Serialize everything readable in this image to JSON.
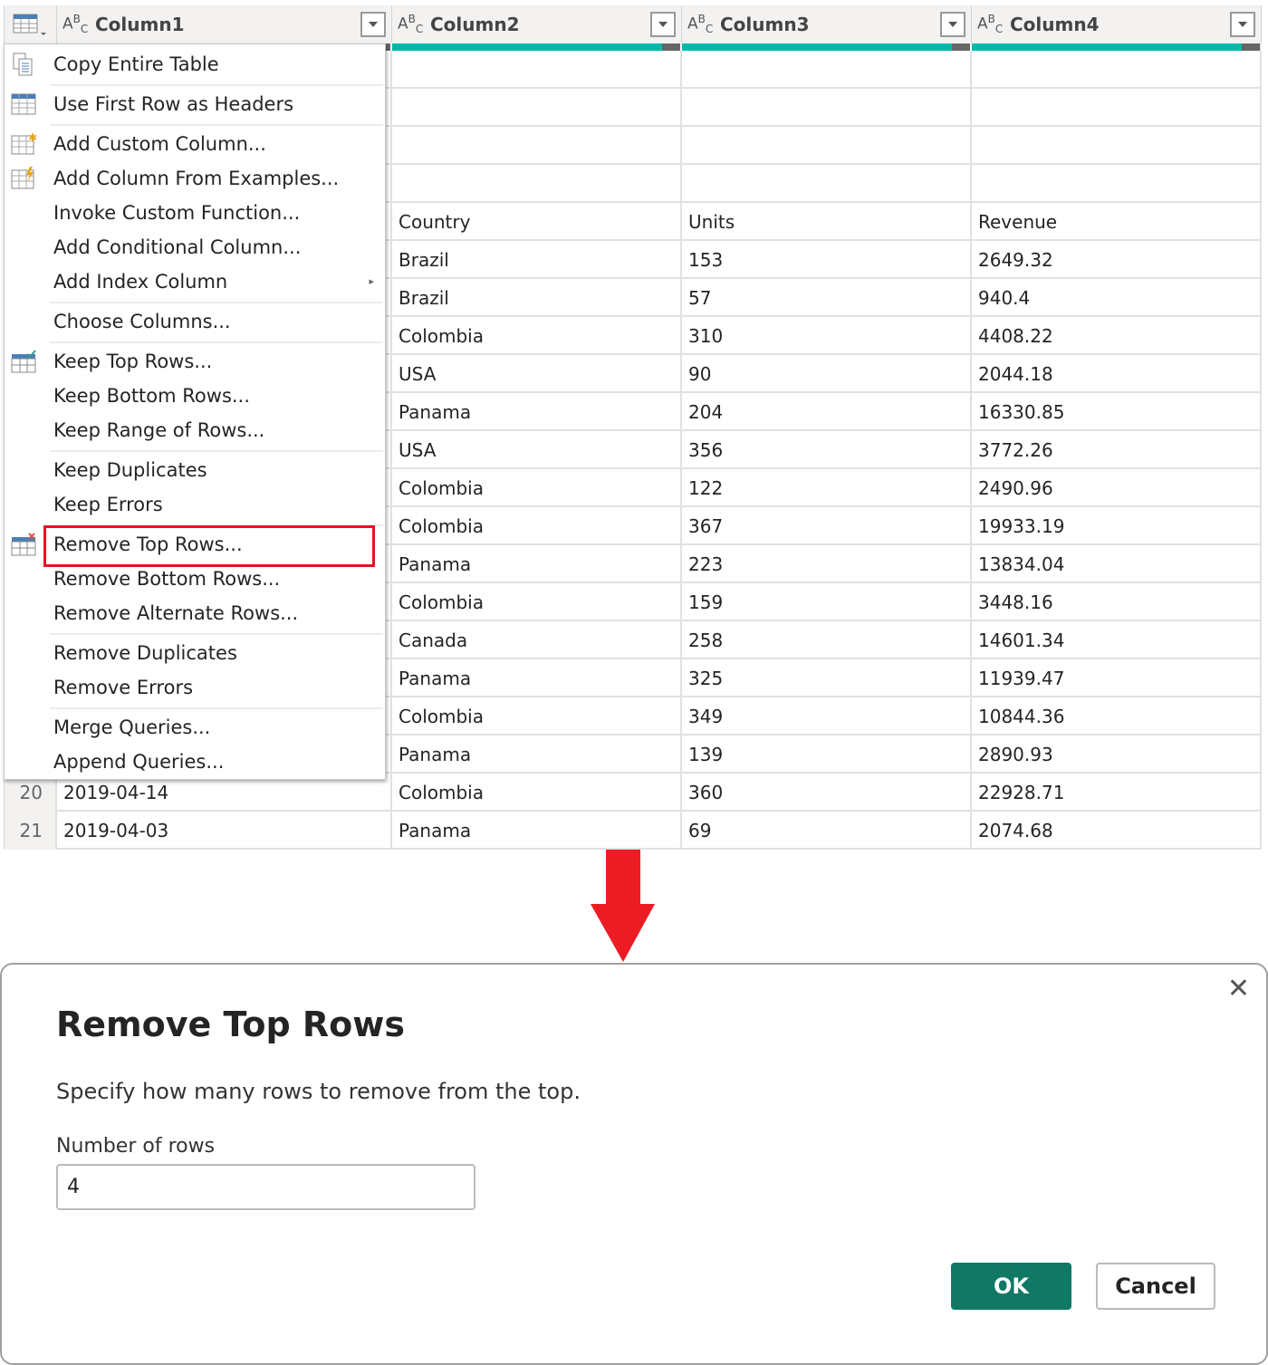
{
  "columns": [
    {
      "type_icon": "ABC",
      "name": "Column1"
    },
    {
      "type_icon": "ABC",
      "name": "Column2"
    },
    {
      "type_icon": "ABC",
      "name": "Column3"
    },
    {
      "type_icon": "ABC",
      "name": "Column4"
    }
  ],
  "rows": [
    {
      "n": "",
      "c": [
        "",
        "",
        "",
        ""
      ]
    },
    {
      "n": "",
      "c": [
        "",
        "",
        "",
        ""
      ]
    },
    {
      "n": "",
      "c": [
        "",
        "",
        "",
        ""
      ]
    },
    {
      "n": "",
      "c": [
        "",
        "",
        "",
        ""
      ]
    },
    {
      "n": "",
      "c": [
        "",
        "Country",
        "Units",
        "Revenue"
      ]
    },
    {
      "n": "",
      "c": [
        "",
        "Brazil",
        "153",
        "2649.32"
      ]
    },
    {
      "n": "",
      "c": [
        "",
        "Brazil",
        "57",
        "940.4"
      ]
    },
    {
      "n": "",
      "c": [
        "",
        "Colombia",
        "310",
        "4408.22"
      ]
    },
    {
      "n": "",
      "c": [
        "",
        "USA",
        "90",
        "2044.18"
      ]
    },
    {
      "n": "",
      "c": [
        "",
        "Panama",
        "204",
        "16330.85"
      ]
    },
    {
      "n": "",
      "c": [
        "",
        "USA",
        "356",
        "3772.26"
      ]
    },
    {
      "n": "",
      "c": [
        "",
        "Colombia",
        "122",
        "2490.96"
      ]
    },
    {
      "n": "",
      "c": [
        "",
        "Colombia",
        "367",
        "19933.19"
      ]
    },
    {
      "n": "",
      "c": [
        "",
        "Panama",
        "223",
        "13834.04"
      ]
    },
    {
      "n": "",
      "c": [
        "",
        "Colombia",
        "159",
        "3448.16"
      ]
    },
    {
      "n": "",
      "c": [
        "",
        "Canada",
        "258",
        "14601.34"
      ]
    },
    {
      "n": "",
      "c": [
        "",
        "Panama",
        "325",
        "11939.47"
      ]
    },
    {
      "n": "",
      "c": [
        "",
        "Colombia",
        "349",
        "10844.36"
      ]
    },
    {
      "n": "",
      "c": [
        "",
        "Panama",
        "139",
        "2890.93"
      ]
    },
    {
      "n": "20",
      "c": [
        "2019-04-14",
        "Colombia",
        "360",
        "22928.71"
      ]
    },
    {
      "n": "21",
      "c": [
        "2019-04-03",
        "Panama",
        "69",
        "2074.68"
      ]
    }
  ],
  "menu": [
    {
      "label": "Copy Entire Table",
      "icon": "copy-icon"
    },
    {
      "label": "Use First Row as Headers",
      "icon": "table-headers-icon"
    },
    {
      "label": "Add Custom Column...",
      "icon": "add-custom-column-icon"
    },
    {
      "label": "Add Column From Examples...",
      "icon": "column-from-examples-icon"
    },
    {
      "label": "Invoke Custom Function..."
    },
    {
      "label": "Add Conditional Column..."
    },
    {
      "label": "Add Index Column",
      "submenu": true
    },
    {
      "label": "Choose Columns..."
    },
    {
      "label": "Keep Top Rows...",
      "icon": "keep-rows-icon"
    },
    {
      "label": "Keep Bottom Rows..."
    },
    {
      "label": "Keep Range of Rows..."
    },
    {
      "label": "Keep Duplicates"
    },
    {
      "label": "Keep Errors"
    },
    {
      "label": "Remove Top Rows...",
      "icon": "remove-rows-icon",
      "highlighted": true
    },
    {
      "label": "Remove Bottom Rows..."
    },
    {
      "label": "Remove Alternate Rows..."
    },
    {
      "label": "Remove Duplicates"
    },
    {
      "label": "Remove Errors"
    },
    {
      "label": "Merge Queries..."
    },
    {
      "label": "Append Queries..."
    }
  ],
  "dialog": {
    "title": "Remove Top Rows",
    "description": "Specify how many rows to remove from the top.",
    "field_label": "Number of rows",
    "field_value": "4",
    "ok_label": "OK",
    "cancel_label": "Cancel"
  },
  "colors": {
    "accent": "#117865",
    "quality_bar": "#01b8aa",
    "highlight": "#e81123",
    "arrow": "#ed1c24"
  }
}
